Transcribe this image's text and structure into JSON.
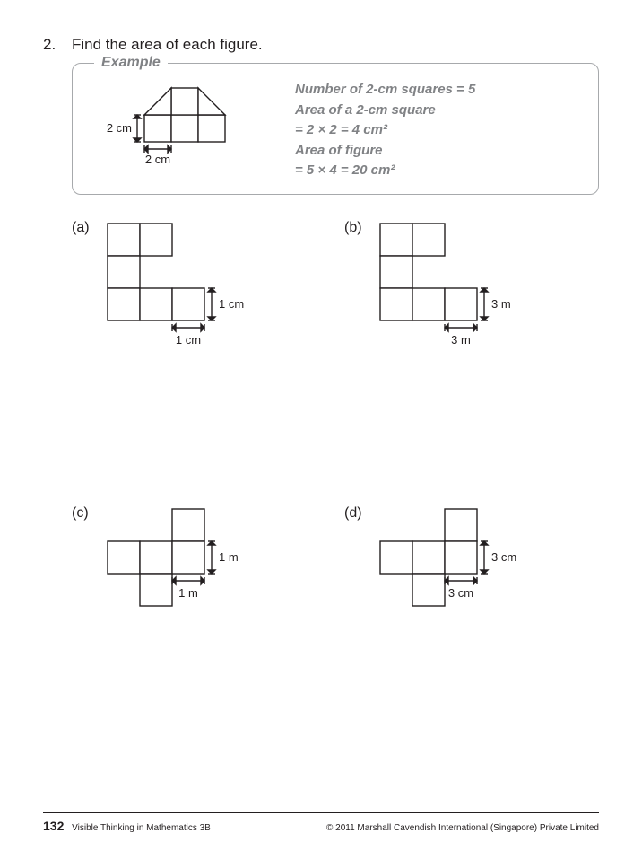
{
  "question": {
    "number": "2.",
    "text": "Find the area of each figure."
  },
  "example": {
    "legend": "Example",
    "lines": [
      "Number of 2-cm squares = 5",
      "Area of a 2-cm square",
      "= 2 × 2 = 4 cm²",
      "Area of figure",
      "= 5 × 4 = 20 cm²"
    ],
    "unit_v": "2 cm",
    "unit_h": "2 cm"
  },
  "problems": [
    {
      "label": "(a)",
      "unit_v": "1 cm",
      "unit_h": "1 cm",
      "shape": "C",
      "cell": 36
    },
    {
      "label": "(b)",
      "unit_v": "3 m",
      "unit_h": "3 m",
      "shape": "C",
      "cell": 36
    },
    {
      "label": "(c)",
      "unit_v": "1 m",
      "unit_h": "1 m",
      "shape": "plus",
      "cell": 36
    },
    {
      "label": "(d)",
      "unit_v": "3 cm",
      "unit_h": "3 cm",
      "shape": "plus",
      "cell": 36
    }
  ],
  "footer": {
    "page": "132",
    "book": "Visible Thinking in Mathematics 3B",
    "copyright": "© 2011 Marshall Cavendish International (Singapore) Private Limited"
  },
  "style": {
    "stroke": "#231f20",
    "grey": "#808285",
    "stroke_width": 1.4
  }
}
